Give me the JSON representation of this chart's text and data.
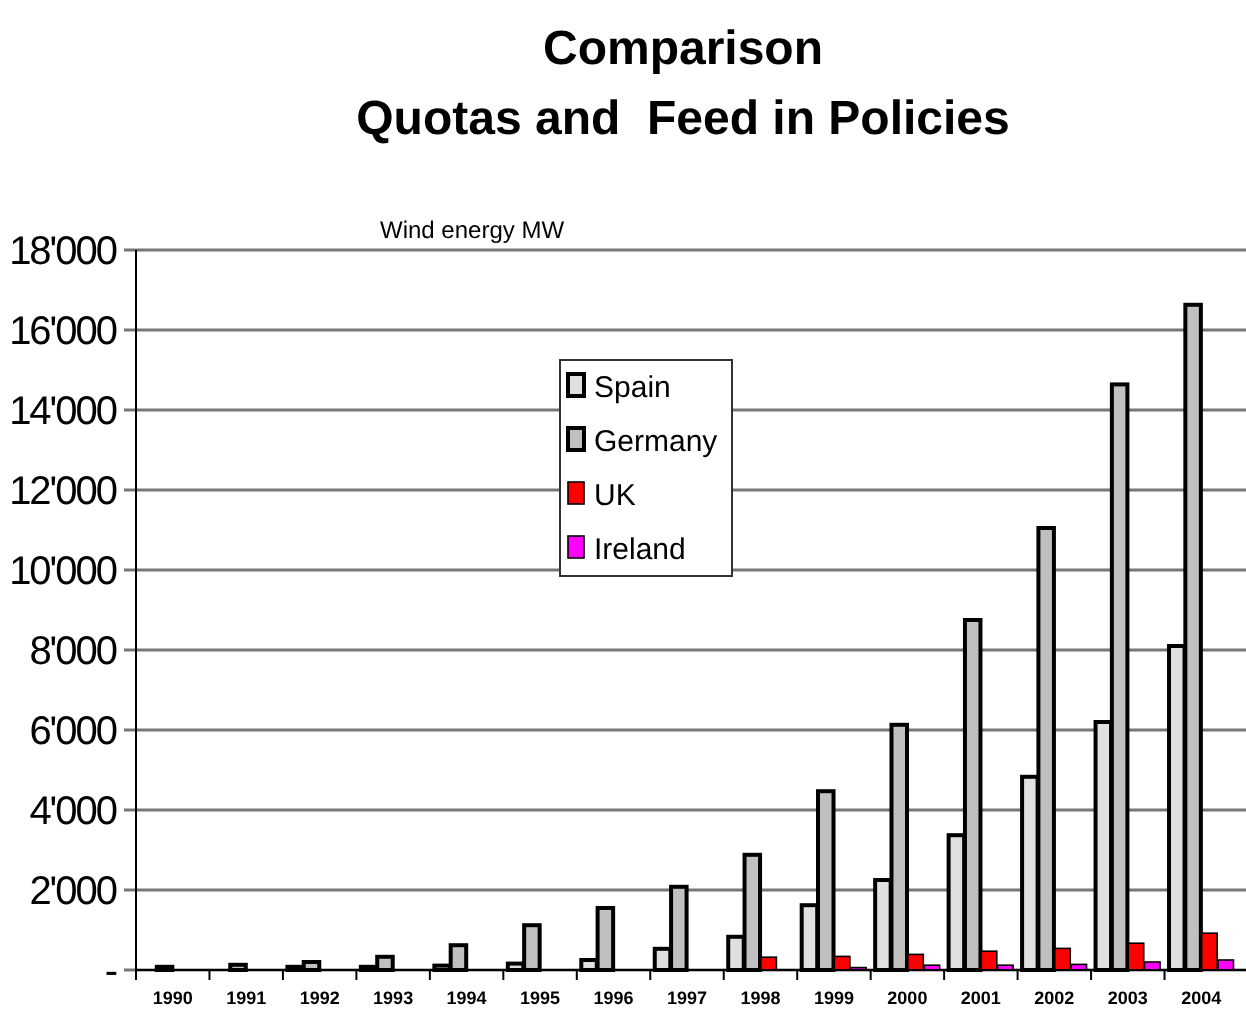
{
  "chart_data": {
    "type": "bar",
    "title": "Comparison",
    "subtitle": "Quotas and  Feed in Policies",
    "ylabel": "Wind energy MW",
    "categories": [
      "1990",
      "1991",
      "1992",
      "1993",
      "1994",
      "1995",
      "1996",
      "1997",
      "1998",
      "1999",
      "2000",
      "2001",
      "2002",
      "2003",
      "2004"
    ],
    "series": [
      {
        "name": "Spain",
        "color": "#e0e0e0",
        "values": [
          null,
          null,
          80,
          80,
          110,
          160,
          250,
          530,
          830,
          1620,
          2250,
          3370,
          4830,
          6200,
          8100
        ]
      },
      {
        "name": "Germany",
        "color": "#c0c0c0",
        "values": [
          80,
          130,
          200,
          330,
          620,
          1120,
          1550,
          2080,
          2880,
          4470,
          6130,
          8750,
          11050,
          14640,
          16630
        ]
      },
      {
        "name": "UK",
        "color": "#ff0000",
        "values": [
          null,
          null,
          null,
          null,
          null,
          null,
          null,
          null,
          320,
          340,
          390,
          470,
          540,
          670,
          920
        ]
      },
      {
        "name": "Ireland",
        "color": "#ff00ff",
        "values": [
          null,
          null,
          null,
          null,
          null,
          null,
          null,
          null,
          null,
          60,
          120,
          120,
          140,
          200,
          250
        ]
      }
    ],
    "ylim": [
      0,
      18000
    ],
    "yticks": [
      {
        "value": 0,
        "label": "-"
      },
      {
        "value": 2000,
        "label": "2'000"
      },
      {
        "value": 4000,
        "label": "4'000"
      },
      {
        "value": 6000,
        "label": "6'000"
      },
      {
        "value": 8000,
        "label": "8'000"
      },
      {
        "value": 10000,
        "label": "10'000"
      },
      {
        "value": 12000,
        "label": "12'000"
      },
      {
        "value": 14000,
        "label": "14'000"
      },
      {
        "value": 16000,
        "label": "16'000"
      },
      {
        "value": 18000,
        "label": "18'000"
      }
    ],
    "grid": "y",
    "legend": "top left"
  }
}
